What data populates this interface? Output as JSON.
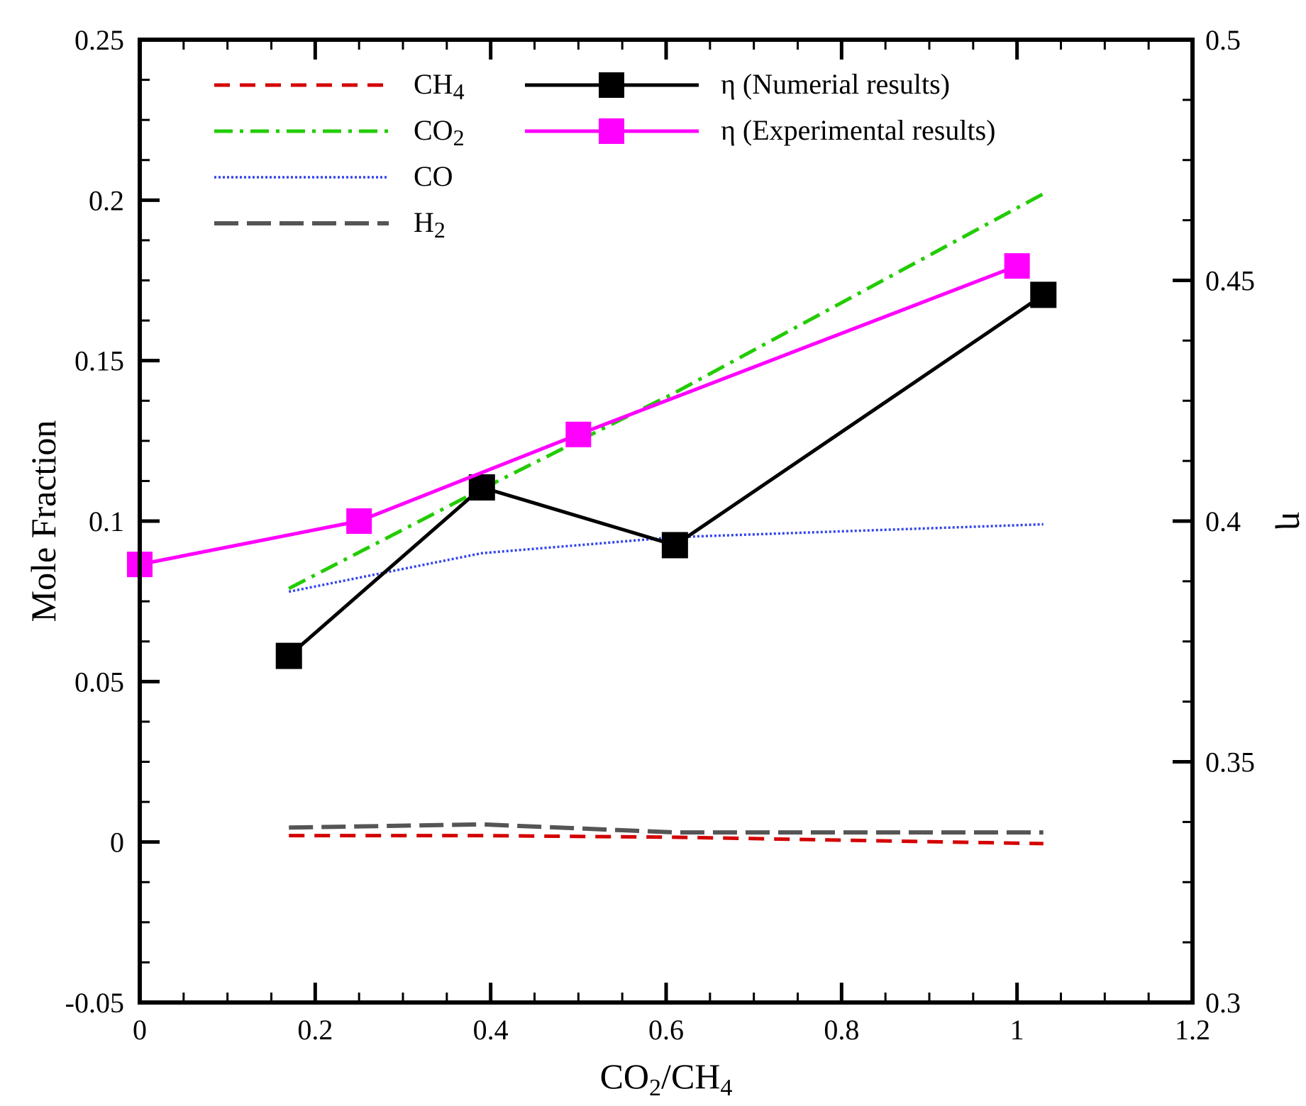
{
  "chart_data": {
    "type": "line",
    "xlabel": "CO2/CH4",
    "xlabel_parts": {
      "a": "CO",
      "a_sub": "2",
      "b": "/CH",
      "b_sub": "4"
    },
    "ylabel_left": "Mole Fraction",
    "ylabel_right": "η",
    "x_range": [
      0,
      1.2
    ],
    "y_left_range": [
      -0.05,
      0.25
    ],
    "y_right_range": [
      0.3,
      0.5
    ],
    "x_ticks": [
      {
        "v": 0,
        "label": "0"
      },
      {
        "v": 0.2,
        "label": "0.2"
      },
      {
        "v": 0.4,
        "label": "0.4"
      },
      {
        "v": 0.6,
        "label": "0.6"
      },
      {
        "v": 0.8,
        "label": "0.8"
      },
      {
        "v": 1,
        "label": "1"
      },
      {
        "v": 1.2,
        "label": "1.2"
      }
    ],
    "y_left_ticks": [
      {
        "v": -0.05,
        "label": "-0.05"
      },
      {
        "v": 0,
        "label": "0"
      },
      {
        "v": 0.05,
        "label": "0.05"
      },
      {
        "v": 0.1,
        "label": "0.1"
      },
      {
        "v": 0.15,
        "label": "0.15"
      },
      {
        "v": 0.2,
        "label": "0.2"
      },
      {
        "v": 0.25,
        "label": "0.25"
      }
    ],
    "y_right_ticks": [
      {
        "v": 0.3,
        "label": "0.3"
      },
      {
        "v": 0.35,
        "label": "0.35"
      },
      {
        "v": 0.4,
        "label": "0.4"
      },
      {
        "v": 0.45,
        "label": "0.45"
      },
      {
        "v": 0.5,
        "label": "0.5"
      }
    ],
    "series": [
      {
        "name": "CH4",
        "label_main": "CH",
        "label_sub": "4",
        "axis": "left",
        "color": "#d40000",
        "style": "dash",
        "x": [
          0.17,
          0.39,
          0.61,
          1.03
        ],
        "y": [
          0.002,
          0.002,
          0.0015,
          -0.0005
        ]
      },
      {
        "name": "CO2",
        "label_main": "CO",
        "label_sub": "2",
        "axis": "left",
        "color": "#22cc00",
        "style": "dashdot",
        "x": [
          0.17,
          0.39,
          0.61,
          1.03
        ],
        "y": [
          0.079,
          0.11,
          0.14,
          0.202
        ]
      },
      {
        "name": "CO",
        "label_main": "CO",
        "label_sub": "",
        "axis": "left",
        "color": "#3344ee",
        "style": "dot",
        "x": [
          0.17,
          0.39,
          0.61,
          1.03
        ],
        "y": [
          0.078,
          0.09,
          0.095,
          0.099
        ]
      },
      {
        "name": "H2",
        "label_main": "H",
        "label_sub": "2",
        "axis": "left",
        "color": "#555555",
        "style": "longdash",
        "x": [
          0.17,
          0.39,
          0.61,
          1.03
        ],
        "y": [
          0.0045,
          0.0055,
          0.003,
          0.003
        ]
      },
      {
        "name": "η (Numerial results)",
        "label_main": "η (Numerial results)",
        "label_sub": "",
        "axis": "right",
        "color": "#000000",
        "style": "solid",
        "marker": "square",
        "x": [
          0.17,
          0.39,
          0.61,
          1.03
        ],
        "y": [
          0.372,
          0.407,
          0.395,
          0.447
        ]
      },
      {
        "name": "η (Experimental results)",
        "label_main": "η (Experimental results)",
        "label_sub": "",
        "axis": "right",
        "color": "#ff00ff",
        "style": "solid",
        "marker": "square",
        "x": [
          0.0,
          0.25,
          0.5,
          1.0
        ],
        "y": [
          0.391,
          0.4,
          0.418,
          0.453
        ]
      }
    ],
    "legend_position": "top-left"
  }
}
